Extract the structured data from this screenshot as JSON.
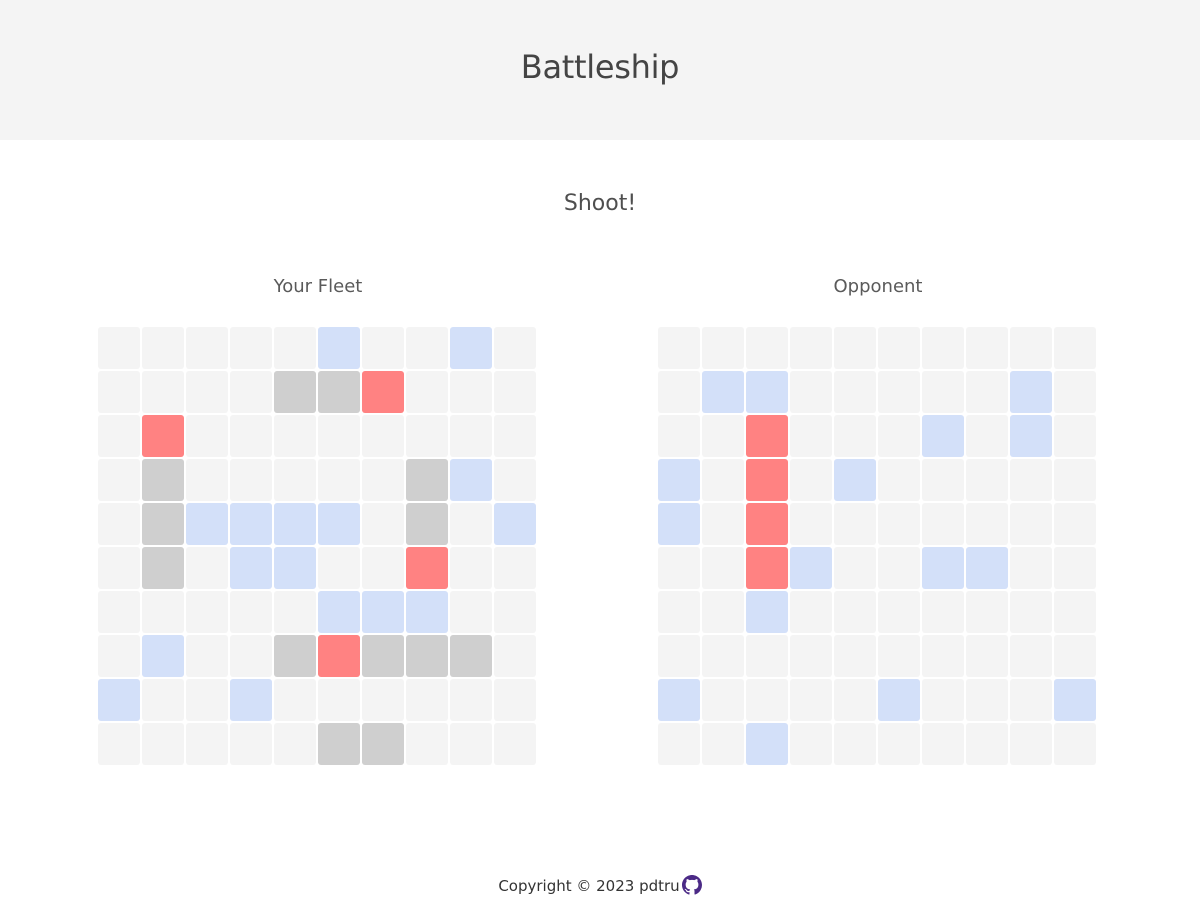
{
  "header": {
    "title": "Battleship"
  },
  "status": "Shoot!",
  "colors": {
    "empty": "#f4f4f4",
    "miss": "#d3e0f9",
    "ship": "#cfcfcf",
    "hit": "#ff8282",
    "github_icon": "#4b2a86"
  },
  "legend": {
    ".": "empty",
    "M": "miss",
    "S": "ship",
    "H": "hit"
  },
  "player_board": {
    "title": "Your Fleet",
    "rows": [
      ".....M..M.",
      "....SSH...",
      ".H........",
      ".S.....SM.",
      ".SMMMM.S.M",
      ".S.MM..H..",
      ".....MMM..",
      ".M..SHSSS.",
      "M..M......",
      ".....SS..."
    ]
  },
  "opponent_board": {
    "title": "Opponent",
    "rows": [
      "..........",
      ".MM.....M.",
      "..H...M.M.",
      "M.H.M.....",
      "M.H.......",
      "..HM..MM..",
      "..M.......",
      "..........",
      "M....M...M",
      "..M......."
    ]
  },
  "footer": {
    "copyright": "Copyright © 2023 pdtru",
    "icon": "github-icon"
  }
}
